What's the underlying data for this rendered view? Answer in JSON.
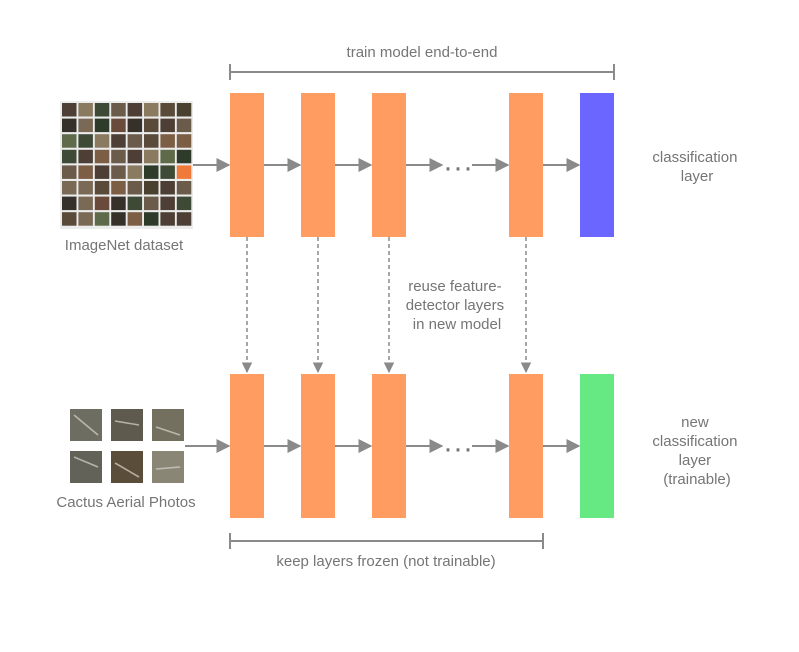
{
  "top_span_label": "train model end-to-end",
  "bottom_span_label": "keep layers frozen (not trainable)",
  "ellipsis": "···",
  "top_row": {
    "dataset_label": "ImageNet dataset",
    "classifier_label": [
      "classification",
      "layer"
    ],
    "classifier_color": "#6b66ff"
  },
  "bottom_row": {
    "dataset_label": "Cactus Aerial Photos",
    "classifier_label": [
      "new",
      "classification",
      "layer",
      "(trainable)"
    ],
    "classifier_color": "#66e883"
  },
  "reuse_label": [
    "reuse feature-",
    "detector layers",
    "in new model"
  ],
  "colors": {
    "feature_layer": "#ff9c61",
    "arrow": "#8a8a8a",
    "bracket": "#8a8a8a",
    "text": "#757575"
  }
}
